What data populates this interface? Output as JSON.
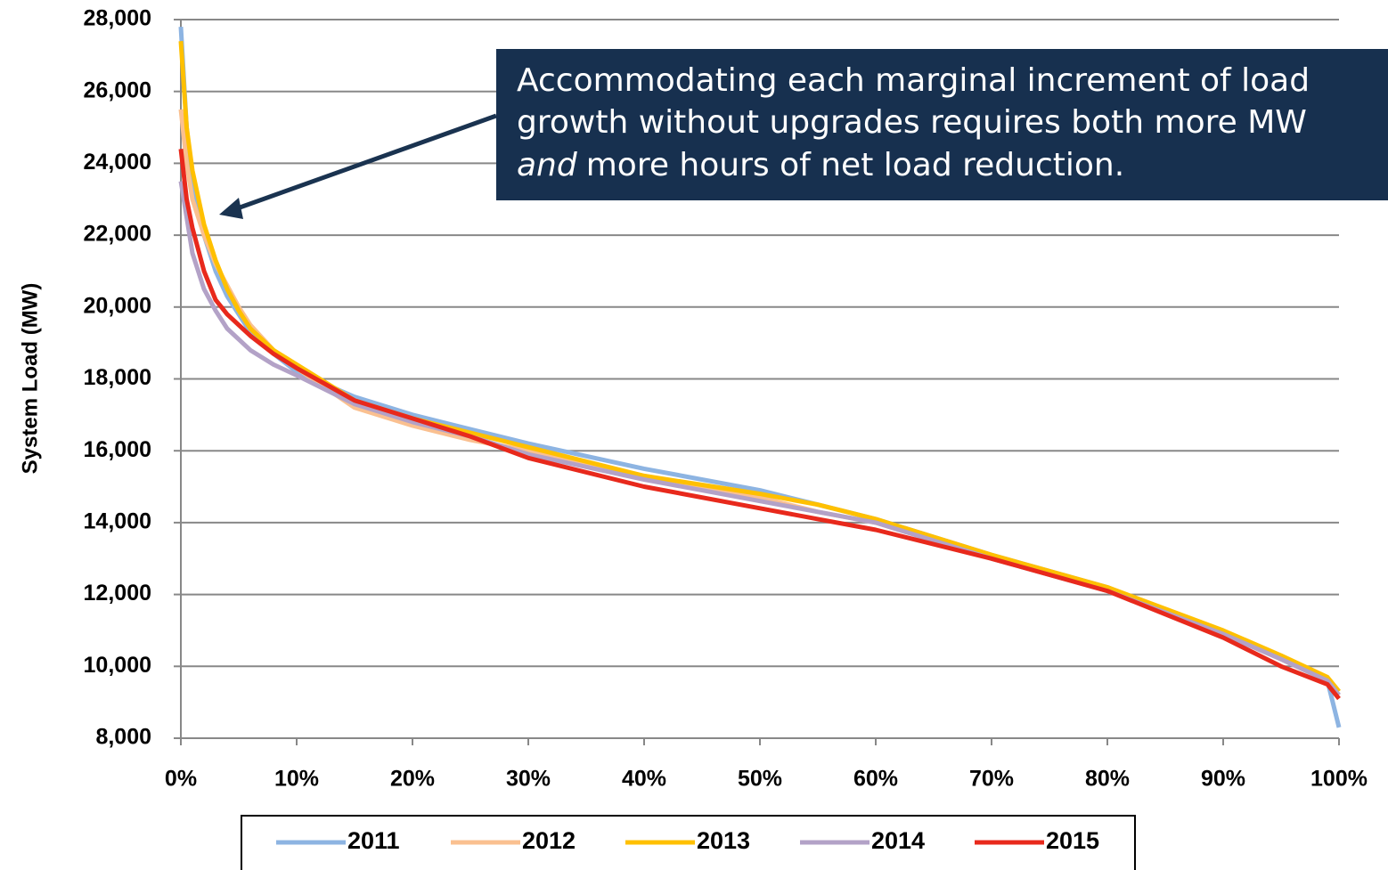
{
  "chart_data": {
    "type": "line",
    "ylabel": "System Load (MW)",
    "x": [
      0,
      0.5,
      1,
      2,
      3,
      4,
      5,
      6,
      8,
      10,
      15,
      20,
      25,
      30,
      40,
      50,
      55,
      60,
      70,
      80,
      90,
      95,
      99,
      100
    ],
    "xlim": [
      0,
      100
    ],
    "xticks": [
      {
        "value": 0,
        "label": "0%"
      },
      {
        "value": 10,
        "label": "10%"
      },
      {
        "value": 20,
        "label": "20%"
      },
      {
        "value": 30,
        "label": "30%"
      },
      {
        "value": 40,
        "label": "40%"
      },
      {
        "value": 50,
        "label": "50%"
      },
      {
        "value": 60,
        "label": "60%"
      },
      {
        "value": 70,
        "label": "70%"
      },
      {
        "value": 80,
        "label": "80%"
      },
      {
        "value": 90,
        "label": "90%"
      },
      {
        "value": 100,
        "label": "100%"
      }
    ],
    "ylim": [
      8000,
      28000
    ],
    "yticks": [
      {
        "value": 8000,
        "label": "8,000"
      },
      {
        "value": 10000,
        "label": "10,000"
      },
      {
        "value": 12000,
        "label": "12,000"
      },
      {
        "value": 14000,
        "label": "14,000"
      },
      {
        "value": 16000,
        "label": "16,000"
      },
      {
        "value": 18000,
        "label": "18,000"
      },
      {
        "value": 20000,
        "label": "20,000"
      },
      {
        "value": 22000,
        "label": "22,000"
      },
      {
        "value": 24000,
        "label": "24,000"
      },
      {
        "value": 26000,
        "label": "26,000"
      },
      {
        "value": 28000,
        "label": "28,000"
      }
    ],
    "grid": true,
    "legend": "bottom",
    "series": [
      {
        "name": "2011",
        "color": "#8db4e2",
        "values": [
          27800,
          25000,
          23500,
          22000,
          21000,
          20300,
          19800,
          19300,
          18700,
          18200,
          17500,
          17000,
          16600,
          16200,
          15500,
          14900,
          14500,
          14100,
          13100,
          12200,
          10900,
          10200,
          9600,
          8300
        ]
      },
      {
        "name": "2012",
        "color": "#fac090",
        "values": [
          25500,
          24000,
          23000,
          22000,
          21200,
          20600,
          20000,
          19500,
          18800,
          18300,
          17200,
          16700,
          16300,
          16000,
          15300,
          14700,
          14300,
          14000,
          13000,
          12100,
          10900,
          10200,
          9600,
          9300
        ]
      },
      {
        "name": "2013",
        "color": "#ffc000",
        "values": [
          27400,
          25000,
          23800,
          22300,
          21300,
          20500,
          19900,
          19400,
          18800,
          18400,
          17400,
          16900,
          16500,
          16100,
          15300,
          14800,
          14500,
          14100,
          13100,
          12200,
          11000,
          10300,
          9700,
          9300
        ]
      },
      {
        "name": "2014",
        "color": "#b3a2c7",
        "values": [
          23500,
          22500,
          21500,
          20500,
          19900,
          19400,
          19100,
          18800,
          18400,
          18100,
          17300,
          16800,
          16400,
          15900,
          15200,
          14600,
          14300,
          14000,
          13000,
          12100,
          10900,
          10200,
          9600,
          9200
        ]
      },
      {
        "name": "2015",
        "color": "#e8291c",
        "values": [
          24400,
          23000,
          22200,
          21000,
          20200,
          19800,
          19500,
          19200,
          18700,
          18300,
          17400,
          16900,
          16400,
          15800,
          15000,
          14400,
          14100,
          13800,
          13000,
          12100,
          10800,
          10000,
          9500,
          9100
        ]
      }
    ],
    "annotation": {
      "lines": [
        "Accommodating each marginal increment of load",
        "growth without upgrades requires both more MW"
      ],
      "emphasis": "and",
      "rest": "more hours of net load reduction."
    }
  }
}
